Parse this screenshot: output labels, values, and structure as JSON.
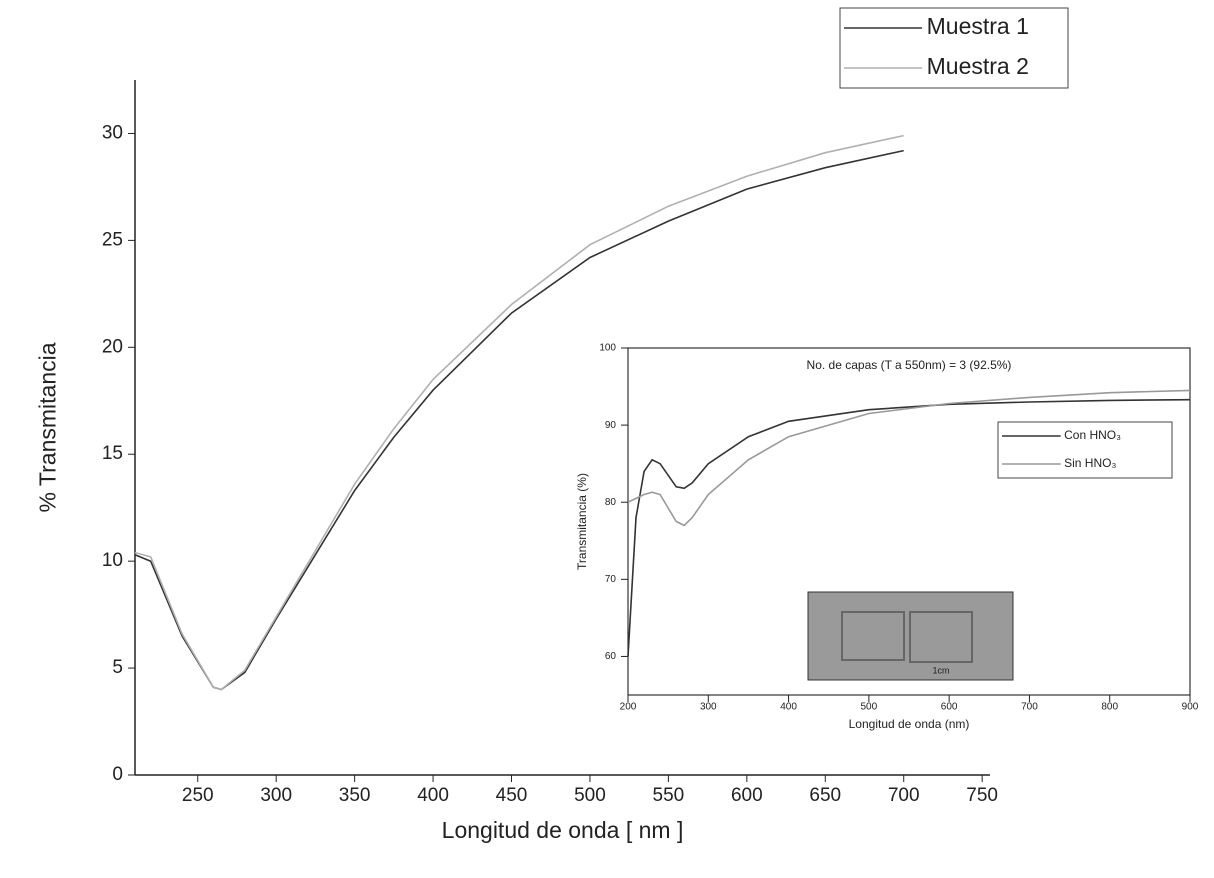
{
  "chart_data": [
    {
      "type": "line",
      "xlabel": "Longitud de onda [ nm ]",
      "ylabel": "% Transmitancia",
      "x": [
        210,
        220,
        240,
        260,
        265,
        280,
        300,
        325,
        350,
        375,
        400,
        450,
        500,
        550,
        600,
        650,
        700
      ],
      "series": [
        {
          "name": "Muestra 1",
          "color": "#333333",
          "values": [
            10.3,
            10.0,
            6.5,
            4.1,
            4.0,
            4.8,
            7.3,
            10.3,
            13.3,
            15.8,
            18.0,
            21.6,
            24.2,
            25.9,
            27.4,
            28.4,
            29.2
          ]
        },
        {
          "name": "Muestra 2",
          "color": "#b0b0b0",
          "values": [
            10.4,
            10.2,
            6.6,
            4.1,
            4.0,
            4.9,
            7.4,
            10.5,
            13.6,
            16.2,
            18.5,
            22.0,
            24.8,
            26.6,
            28.0,
            29.1,
            29.9
          ]
        }
      ],
      "xlim": [
        210,
        755
      ],
      "ylim": [
        0,
        32.5
      ],
      "xticks": [
        250,
        300,
        350,
        400,
        450,
        500,
        550,
        600,
        650,
        700,
        750
      ],
      "yticks": [
        0,
        5,
        10,
        15,
        20,
        25,
        30
      ]
    },
    {
      "type": "line",
      "title": "No. de capas (T a 550nm) = 3 (92.5%)",
      "xlabel": "Longitud de onda (nm)",
      "ylabel": "Transmitancia (%)",
      "photo_label": "1cm",
      "x": [
        200,
        210,
        220,
        230,
        240,
        260,
        270,
        280,
        300,
        350,
        400,
        500,
        600,
        700,
        800,
        900
      ],
      "series": [
        {
          "name": "Con HNO₃",
          "color": "#333333",
          "values": [
            60,
            78,
            84,
            85.5,
            85,
            82,
            81.8,
            82.5,
            85,
            88.5,
            90.5,
            92,
            92.7,
            93,
            93.2,
            93.3
          ]
        },
        {
          "name": "Sin HNO₃",
          "color": "#999999",
          "values": [
            80,
            80.5,
            81,
            81.3,
            81,
            77.5,
            77,
            78,
            81,
            85.5,
            88.5,
            91.5,
            92.8,
            93.6,
            94.2,
            94.5
          ]
        }
      ],
      "xlim": [
        200,
        900
      ],
      "ylim": [
        55,
        100
      ],
      "xticks": [
        200,
        300,
        400,
        500,
        600,
        700,
        800,
        900
      ],
      "yticks": [
        60,
        70,
        80,
        90,
        100
      ]
    }
  ]
}
